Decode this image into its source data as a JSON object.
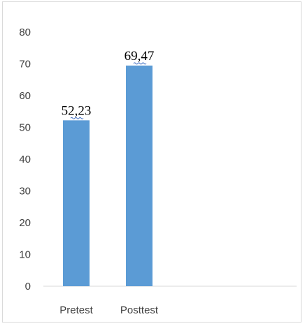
{
  "chart_data": {
    "type": "bar",
    "categories": [
      "Pretest",
      "Posttest"
    ],
    "values": [
      52.23,
      69.47
    ],
    "data_labels": [
      "52,23",
      "69,47"
    ],
    "title": "",
    "xlabel": "",
    "ylabel": "",
    "ylim": [
      0,
      80
    ],
    "yticks": [
      0,
      10,
      20,
      30,
      40,
      50,
      60,
      70,
      80
    ],
    "grid": false,
    "legend": "none",
    "colors": {
      "bar": "#5b9bd5",
      "axis": "#d9d9d9",
      "text": "#404040",
      "label_underline": "#4472c4"
    }
  }
}
